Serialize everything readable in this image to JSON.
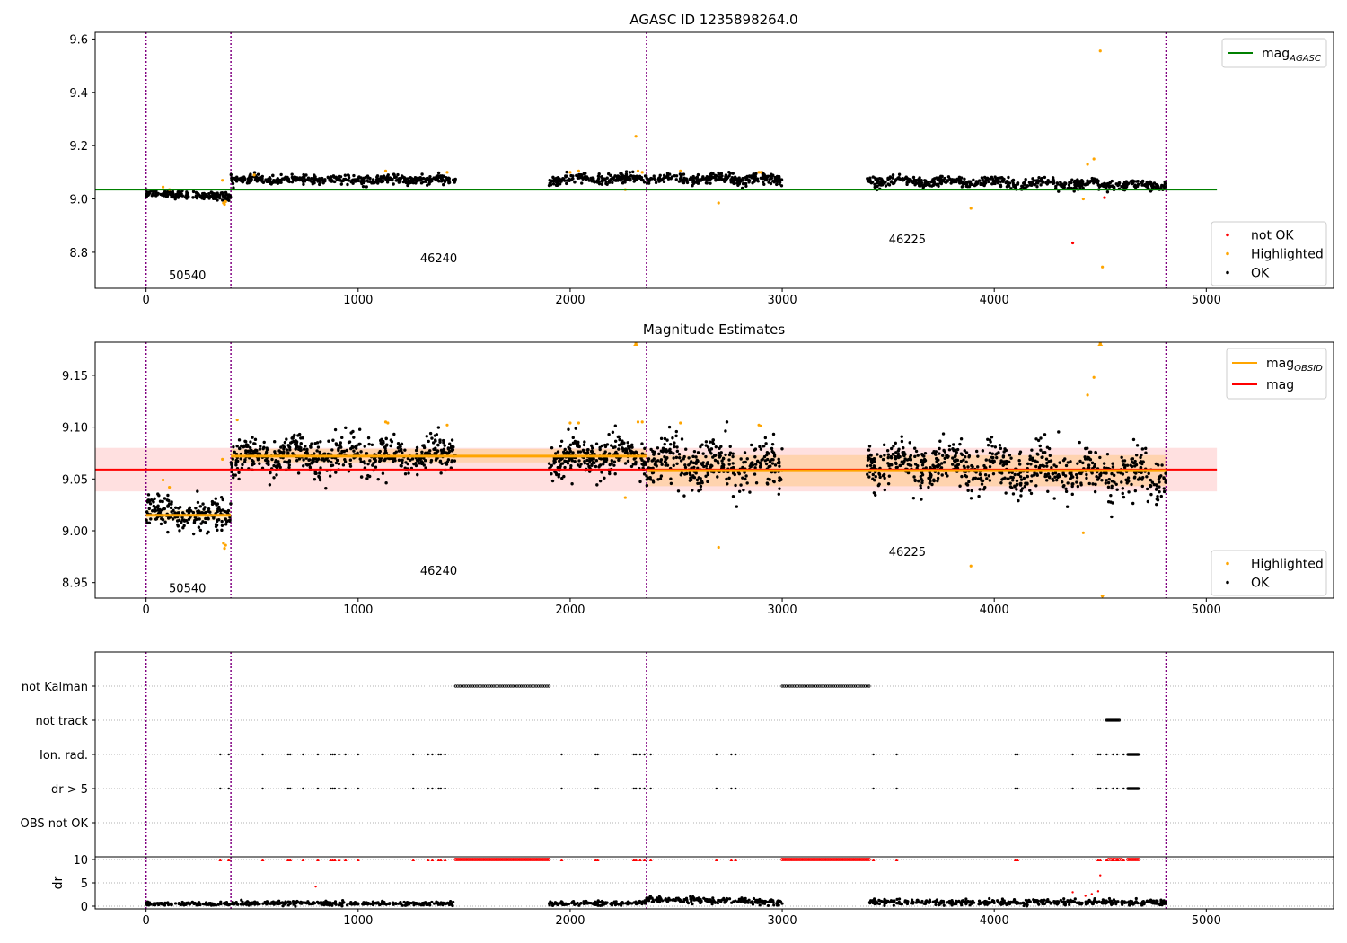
{
  "chart_data": [
    {
      "type": "scatter",
      "title": "AGASC ID 1235898264.0",
      "xlabel": "",
      "ylabel": "",
      "xlim": [
        -240,
        5600
      ],
      "ylim": [
        8.665,
        9.625
      ],
      "xticks": [
        0,
        1000,
        2000,
        3000,
        4000,
        5000
      ],
      "xticklabels": [
        "0",
        "1000",
        "2000",
        "3000",
        "4000",
        "5000"
      ],
      "yticks": [
        8.8,
        9.0,
        9.2,
        9.4,
        9.6
      ],
      "yticklabels": [
        "8.8",
        "9.0",
        "9.2",
        "9.4",
        "9.6"
      ],
      "grid": false,
      "legend_upper": {
        "placement": "top-right",
        "entries": [
          {
            "name": "mag",
            "sub": "AGASC",
            "color": "#008000",
            "style": "line"
          }
        ]
      },
      "legend_lower": {
        "placement": "bottom-right",
        "entries": [
          {
            "name": "not OK",
            "color": "#ff0000"
          },
          {
            "name": "Highlighted",
            "color": "#ffa500"
          },
          {
            "name": "OK",
            "color": "#000000"
          }
        ]
      },
      "hline": {
        "name": "mag_AGASC",
        "y": 9.035,
        "x_range": [
          -240,
          5050
        ],
        "color": "#008000"
      },
      "vlines": {
        "x": [
          0,
          400,
          2360,
          4810
        ],
        "color": "#800080",
        "style": "dotted"
      },
      "obsid_labels": [
        {
          "text": "50540",
          "x": 195,
          "y": 8.715
        },
        {
          "text": "46240",
          "x": 1380,
          "y": 8.78
        },
        {
          "text": "46225",
          "x": 3590,
          "y": 8.85
        }
      ],
      "series": [
        {
          "name": "OK",
          "color": "#000000",
          "segments": [
            {
              "x0": 0,
              "x1": 400,
              "n": 170,
              "y0": 9.02,
              "y1": 9.01,
              "sd": 0.007,
              "wave": 0
            },
            {
              "x0": 400,
              "x1": 1460,
              "n": 420,
              "y0": 9.072,
              "y1": 9.072,
              "sd": 0.008,
              "wave": 0.003
            },
            {
              "x0": 1900,
              "x1": 2360,
              "n": 200,
              "y0": 9.07,
              "y1": 9.08,
              "sd": 0.009,
              "wave": 0.004
            },
            {
              "x0": 2360,
              "x1": 3000,
              "n": 250,
              "y0": 9.075,
              "y1": 9.075,
              "sd": 0.01,
              "wave": 0.006
            },
            {
              "x0": 3400,
              "x1": 4810,
              "n": 520,
              "y0": 9.07,
              "y1": 9.05,
              "sd": 0.009,
              "wave": 0.006
            }
          ]
        },
        {
          "name": "Highlighted",
          "color": "#ffa500",
          "points": [
            [
              80,
              9.045
            ],
            [
              110,
              9.035
            ],
            [
              360,
              9.07
            ],
            [
              365,
              8.985
            ],
            [
              370,
              8.98
            ],
            [
              375,
              8.99
            ],
            [
              510,
              9.09
            ],
            [
              1130,
              9.105
            ],
            [
              1420,
              9.1
            ],
            [
              2000,
              9.1
            ],
            [
              2040,
              9.105
            ],
            [
              2260,
              9.035
            ],
            [
              2310,
              9.235
            ],
            [
              2320,
              9.105
            ],
            [
              2340,
              9.1
            ],
            [
              2520,
              9.105
            ],
            [
              2700,
              8.985
            ],
            [
              2890,
              9.1
            ],
            [
              2900,
              9.1
            ],
            [
              3890,
              8.965
            ],
            [
              4420,
              9.0
            ],
            [
              4440,
              9.13
            ],
            [
              4470,
              9.15
            ],
            [
              4500,
              9.555
            ],
            [
              4510,
              8.745
            ]
          ]
        },
        {
          "name": "not OK",
          "color": "#ff0000",
          "points": [
            [
              4370,
              8.835
            ],
            [
              4520,
              9.005
            ]
          ]
        }
      ]
    },
    {
      "type": "scatter",
      "title": "Magnitude Estimates",
      "xlabel": "",
      "ylabel": "",
      "xlim": [
        -240,
        5600
      ],
      "ylim": [
        8.935,
        9.182
      ],
      "xticks": [
        0,
        1000,
        2000,
        3000,
        4000,
        5000
      ],
      "xticklabels": [
        "0",
        "1000",
        "2000",
        "3000",
        "4000",
        "5000"
      ],
      "yticks": [
        8.95,
        9.0,
        9.05,
        9.1,
        9.15
      ],
      "yticklabels": [
        "8.95",
        "9.00",
        "9.05",
        "9.10",
        "9.15"
      ],
      "grid": false,
      "legend_upper": {
        "placement": "top-right",
        "entries": [
          {
            "name": "mag",
            "sub": "OBSID",
            "color": "#ffa500",
            "style": "line"
          },
          {
            "name": "mag",
            "color": "#ff0000",
            "style": "line"
          }
        ]
      },
      "legend_lower": {
        "placement": "bottom-right",
        "entries": [
          {
            "name": "Highlighted",
            "color": "#ffa500"
          },
          {
            "name": "OK",
            "color": "#000000"
          }
        ]
      },
      "mag_line": {
        "y": 9.059,
        "x_range": [
          -240,
          5050
        ],
        "band": [
          9.038,
          9.08
        ],
        "color": "#ff0000"
      },
      "obsid_mag": [
        {
          "x0": 0,
          "x1": 400,
          "y": 9.015,
          "band": [
            9.01,
            9.02
          ]
        },
        {
          "x0": 400,
          "x1": 2360,
          "y": 9.072,
          "band": [
            9.066,
            9.079
          ]
        },
        {
          "x0": 2360,
          "x1": 4810,
          "y": 9.058,
          "band": [
            9.043,
            9.073
          ]
        }
      ],
      "vlines": {
        "x": [
          0,
          400,
          2360,
          4810
        ],
        "color": "#800080",
        "style": "dotted"
      },
      "obsid_labels": [
        {
          "text": "50540",
          "x": 195,
          "y": 8.945
        },
        {
          "text": "46240",
          "x": 1380,
          "y": 8.962
        },
        {
          "text": "46225",
          "x": 3590,
          "y": 8.98
        }
      ],
      "series": [
        {
          "name": "OK",
          "color": "#000000",
          "segments": [
            {
              "x0": 0,
              "x1": 400,
              "n": 200,
              "y0": 9.02,
              "y1": 9.012,
              "sd": 0.008,
              "wave": 0.002
            },
            {
              "x0": 400,
              "x1": 1460,
              "n": 560,
              "y0": 9.072,
              "y1": 9.072,
              "sd": 0.009,
              "wave": 0.005
            },
            {
              "x0": 1900,
              "x1": 2360,
              "n": 260,
              "y0": 9.07,
              "y1": 9.075,
              "sd": 0.009,
              "wave": 0.006
            },
            {
              "x0": 2360,
              "x1": 3000,
              "n": 330,
              "y0": 9.066,
              "y1": 9.062,
              "sd": 0.011,
              "wave": 0.008
            },
            {
              "x0": 3400,
              "x1": 4810,
              "n": 700,
              "y0": 9.066,
              "y1": 9.052,
              "sd": 0.011,
              "wave": 0.008
            }
          ]
        },
        {
          "name": "Highlighted",
          "color": "#ffa500",
          "points": [
            [
              80,
              9.049
            ],
            [
              110,
              9.042
            ],
            [
              360,
              9.069
            ],
            [
              365,
              8.988
            ],
            [
              370,
              8.983
            ],
            [
              375,
              8.986
            ],
            [
              430,
              9.107
            ],
            [
              1130,
              9.105
            ],
            [
              1140,
              9.104
            ],
            [
              1420,
              9.102
            ],
            [
              2000,
              9.104
            ],
            [
              2040,
              9.104
            ],
            [
              2260,
              9.032
            ],
            [
              2310,
              9.181
            ],
            [
              2320,
              9.105
            ],
            [
              2340,
              9.105
            ],
            [
              2520,
              9.104
            ],
            [
              2700,
              8.984
            ],
            [
              2890,
              9.102
            ],
            [
              2900,
              9.101
            ],
            [
              3890,
              8.966
            ],
            [
              4420,
              8.998
            ],
            [
              4440,
              9.131
            ],
            [
              4470,
              9.148
            ],
            [
              4500,
              9.181
            ],
            [
              4510,
              8.937
            ]
          ]
        }
      ]
    },
    {
      "type": "scatter",
      "title": "",
      "xlim": [
        -240,
        5600
      ],
      "categories": [
        "not Kalman",
        "not track",
        "Ion. rad.",
        "dr > 5",
        "OBS not OK"
      ],
      "grid": true,
      "vlines": {
        "x": [
          0,
          400,
          2360,
          4810
        ],
        "color": "#800080",
        "style": "dotted"
      },
      "flags": [
        {
          "name": "not Kalman",
          "ranges": [
            [
              1460,
              1900,
              11
            ],
            [
              3000,
              3410,
              11
            ]
          ],
          "points": []
        },
        {
          "name": "not track",
          "ranges": [
            [
              4530,
              4590,
              4
            ]
          ],
          "points": []
        },
        {
          "name": "Ion. rad.",
          "ranges": [
            [
              4630,
              4680,
              7
            ]
          ],
          "points": [
            350,
            390,
            550,
            670,
            680,
            740,
            810,
            870,
            880,
            890,
            910,
            940,
            1000,
            1260,
            1330,
            1350,
            1380,
            1390,
            1410,
            1960,
            2120,
            2130,
            2300,
            2310,
            2330,
            2350,
            2380,
            2690,
            2760,
            2780,
            3430,
            3540,
            4100,
            4110,
            4370,
            4490,
            4500,
            4530,
            4560,
            4580,
            4610
          ]
        },
        {
          "name": "dr > 5",
          "ranges": [
            [
              4630,
              4680,
              7
            ]
          ],
          "points": [
            350,
            390,
            550,
            670,
            680,
            740,
            810,
            870,
            880,
            890,
            910,
            940,
            1000,
            1260,
            1330,
            1350,
            1380,
            1390,
            1410,
            1960,
            2120,
            2130,
            2300,
            2310,
            2330,
            2350,
            2380,
            2690,
            2760,
            2780,
            3430,
            3540,
            4100,
            4110,
            4370,
            4490,
            4500,
            4530,
            4560,
            4580,
            4610
          ]
        },
        {
          "name": "OBS not OK",
          "ranges": [],
          "points": []
        }
      ]
    },
    {
      "type": "scatter",
      "title": "",
      "xlabel": "",
      "ylabel": "dr",
      "xlim": [
        -240,
        5600
      ],
      "ylim": [
        -0.5,
        10
      ],
      "xticks": [
        0,
        1000,
        2000,
        3000,
        4000,
        5000
      ],
      "xticklabels": [
        "0",
        "1000",
        "2000",
        "3000",
        "4000",
        "5000"
      ],
      "yticks": [
        0,
        5,
        10
      ],
      "yticklabels": [
        "0",
        "5",
        "10"
      ],
      "grid": true,
      "vlines": {
        "x": [
          0,
          400,
          2360,
          4810
        ],
        "color": "#800080",
        "style": "dotted"
      },
      "series": [
        {
          "name": "OK",
          "color": "#000000",
          "segments": [
            {
              "x0": 0,
              "x1": 1460,
              "n": 420,
              "y0": 0.55,
              "y1": 0.6,
              "sd": 0.22
            },
            {
              "x0": 1900,
              "x1": 2360,
              "n": 150,
              "y0": 0.55,
              "y1": 0.7,
              "sd": 0.22
            },
            {
              "x0": 2360,
              "x1": 3000,
              "n": 200,
              "y0": 1.5,
              "y1": 0.8,
              "sd": 0.3
            },
            {
              "x0": 3410,
              "x1": 4810,
              "n": 420,
              "y0": 0.9,
              "y1": 0.8,
              "sd": 0.3
            }
          ]
        },
        {
          "name": "not OK",
          "color": "#ff0000",
          "clipped_at": 10,
          "ranges": [
            [
              1460,
              1900,
              60
            ],
            [
              3000,
              3410,
              56
            ],
            [
              4540,
              4600,
              6
            ],
            [
              4630,
              4680,
              7
            ]
          ],
          "points": [
            350,
            390,
            550,
            670,
            680,
            740,
            810,
            870,
            880,
            890,
            910,
            940,
            1000,
            1260,
            1330,
            1350,
            1380,
            1390,
            1410,
            1960,
            2120,
            2130,
            2300,
            2310,
            2330,
            2350,
            2380,
            2690,
            2760,
            2780,
            3430,
            3540,
            4100,
            4110,
            4490,
            4500,
            4530,
            4560,
            4580,
            4610
          ],
          "low_points": [
            [
              800,
              4.2
            ],
            [
              4370,
              3.0
            ],
            [
              4430,
              2.2
            ],
            [
              4460,
              2.6
            ],
            [
              4490,
              3.2
            ],
            [
              4500,
              6.6
            ]
          ]
        }
      ]
    }
  ]
}
